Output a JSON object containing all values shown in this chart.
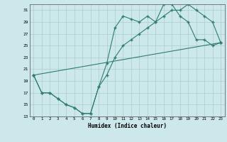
{
  "xlabel": "Humidex (Indice chaleur)",
  "bg_color": "#cce8ea",
  "line_color": "#2e7d6e",
  "grid_color": "#aacccc",
  "xlim": [
    -0.5,
    23.5
  ],
  "ylim": [
    13,
    32
  ],
  "yticks": [
    13,
    15,
    17,
    19,
    21,
    23,
    25,
    27,
    29,
    31
  ],
  "xticks": [
    0,
    1,
    2,
    3,
    4,
    5,
    6,
    7,
    8,
    9,
    10,
    11,
    12,
    13,
    14,
    15,
    16,
    17,
    18,
    19,
    20,
    21,
    22,
    23
  ],
  "series1_x": [
    0,
    1,
    2,
    3,
    4,
    5,
    6,
    7,
    8,
    9,
    10,
    11,
    12,
    13,
    14,
    15,
    16,
    17,
    18,
    19,
    20,
    21,
    22,
    23
  ],
  "series1_y": [
    20,
    17,
    17,
    16,
    15,
    14.5,
    13.5,
    13.5,
    18,
    22,
    28,
    30,
    29.5,
    29,
    30,
    29,
    32,
    32,
    30,
    29,
    26,
    26,
    25,
    25.5
  ],
  "series2_x": [
    0,
    1,
    2,
    3,
    4,
    5,
    6,
    7,
    8,
    9,
    10,
    11,
    12,
    13,
    14,
    15,
    16,
    17,
    18,
    19,
    20,
    21,
    22,
    23
  ],
  "series2_y": [
    20,
    17,
    17,
    16,
    15,
    14.5,
    13.5,
    13.5,
    18,
    20,
    23,
    25,
    26,
    27,
    28,
    29,
    30,
    31,
    31,
    32,
    31,
    30,
    29,
    25.5
  ],
  "series3_x": [
    0,
    23
  ],
  "series3_y": [
    20,
    25.5
  ]
}
